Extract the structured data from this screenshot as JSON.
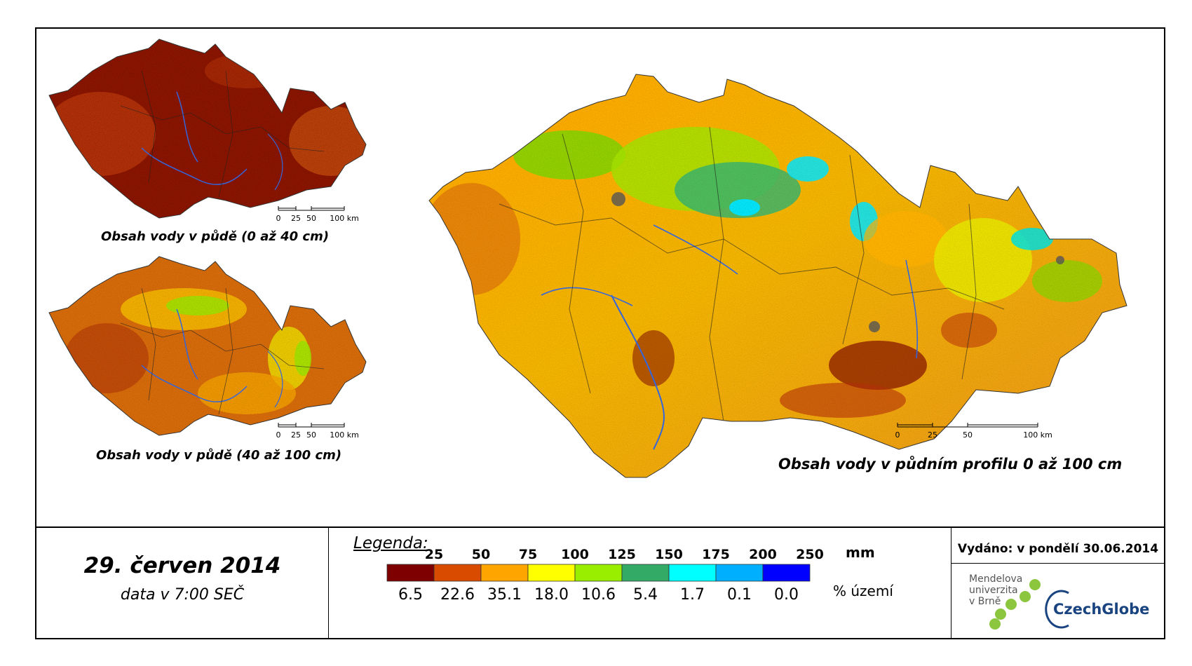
{
  "maps": [
    {
      "caption": "Obsah vody v půdě (0 až 40 cm)",
      "scale_ticks": [
        "0",
        "25",
        "50",
        "100 km"
      ]
    },
    {
      "caption": "Obsah vody v půdě (40 až 100 cm)",
      "scale_ticks": [
        "0",
        "25",
        "50",
        "100 km"
      ]
    },
    {
      "caption": "Obsah vody v půdním profilu 0 až 100 cm",
      "scale_ticks": [
        "0",
        "25",
        "50",
        "100 km"
      ]
    }
  ],
  "date": {
    "main": "29. červen 2014",
    "sub": "data v 7:00 SEČ"
  },
  "legend": {
    "title": "Legenda:",
    "thresholds": [
      "25",
      "50",
      "75",
      "100",
      "125",
      "150",
      "175",
      "200",
      "250"
    ],
    "unit": "mm",
    "percent_label": "% území",
    "classes": [
      {
        "color": "#7f0000",
        "percent": "6.5"
      },
      {
        "color": "#d94c00",
        "percent": "22.6"
      },
      {
        "color": "#ffa500",
        "percent": "35.1"
      },
      {
        "color": "#ffff00",
        "percent": "18.0"
      },
      {
        "color": "#99ee00",
        "percent": "10.6"
      },
      {
        "color": "#33aa66",
        "percent": "5.4"
      },
      {
        "color": "#00ffff",
        "percent": "1.7"
      },
      {
        "color": "#00b0ff",
        "percent": "0.1"
      },
      {
        "color": "#0000ff",
        "percent": "0.0"
      }
    ]
  },
  "issued": "Vydáno: v pondělí 30.06.2014",
  "logos": {
    "mendel": [
      "Mendelova",
      "univerzita",
      "v Brně"
    ],
    "mendel_dot_color": "#8cc63f",
    "czechglobe": "CzechGlobe",
    "czechglobe_color": "#1a4480"
  }
}
